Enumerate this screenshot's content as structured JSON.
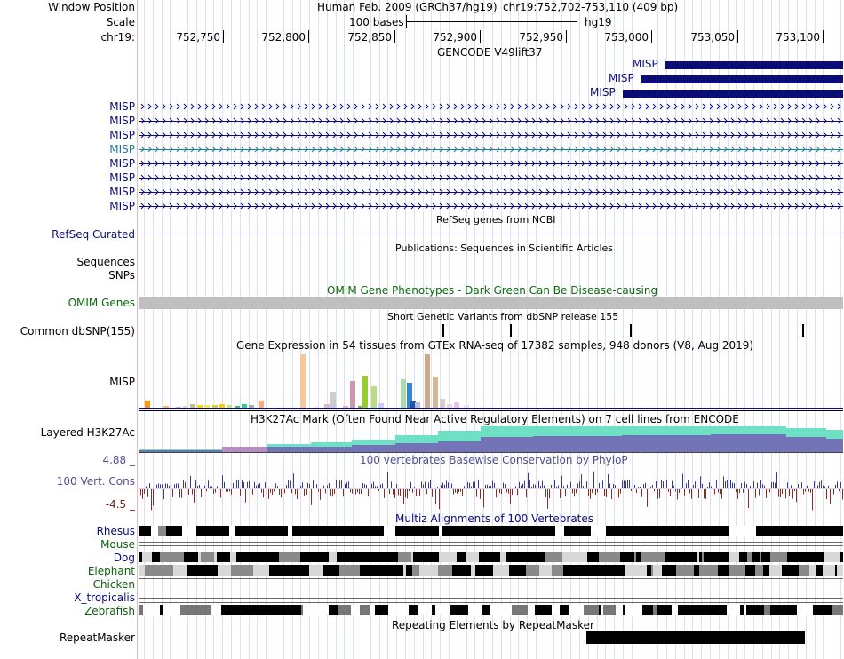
{
  "header": {
    "window_position_label": "Window Position",
    "scale_label": "Scale",
    "chrom_label": "chr19:",
    "assembly": "Human Feb. 2009 (GRCh37/hg19)",
    "position": "chr19:752,702-753,110 (409 bp)",
    "scale_text": "100 bases",
    "scale_db": "hg19",
    "ruler_ticks": [
      "752,750",
      "752,800",
      "752,850",
      "752,900",
      "752,950",
      "753,000",
      "753,050",
      "753,100"
    ]
  },
  "gencode": {
    "title": "GENCODE V49lift37",
    "gene_labels": [
      "MISP",
      "MISP",
      "MISP"
    ],
    "transcript_labels": [
      "MISP",
      "MISP",
      "MISP",
      "MISP",
      "MISP",
      "MISP",
      "MISP",
      "MISP"
    ]
  },
  "refseq": {
    "title": "RefSeq genes from NCBI",
    "label": "RefSeq Curated"
  },
  "publications": {
    "title": "Publications: Sequences in Scientific Articles",
    "label_sequences": "Sequences",
    "label_snps": "SNPs"
  },
  "omim": {
    "title": "OMIM Gene Phenotypes - Dark Green Can Be Disease-causing",
    "label": "OMIM Genes"
  },
  "dbsnp": {
    "title": "Short Genetic Variants from dbSNP release 155",
    "label": "Common dbSNP(155)"
  },
  "gtex": {
    "title": "Gene Expression in 54 tissues from GTEx RNA-seq of 17382 samples, 948 donors (V8, Aug 2019)",
    "label": "MISP"
  },
  "h3k27ac": {
    "title": "H3K27Ac Mark (Often Found Near Active Regulatory Elements) on 7 cell lines from ENCODE",
    "label": "Layered H3K27Ac"
  },
  "conservation": {
    "title": "100 vertebrates Basewise Conservation by PhyloP",
    "label": "100 Vert. Cons",
    "max_label": "4.88 _",
    "min_label": "-4.5 _"
  },
  "multiz": {
    "title": "Multiz Alignments of 100 Vertebrates",
    "species": [
      "Rhesus",
      "Mouse",
      "Dog",
      "Elephant",
      "Chicken",
      "X_tropicalis",
      "Zebrafish"
    ]
  },
  "repeatmasker": {
    "title": "Repeating Elements by RepeatMasker",
    "label": "RepeatMasker"
  }
}
